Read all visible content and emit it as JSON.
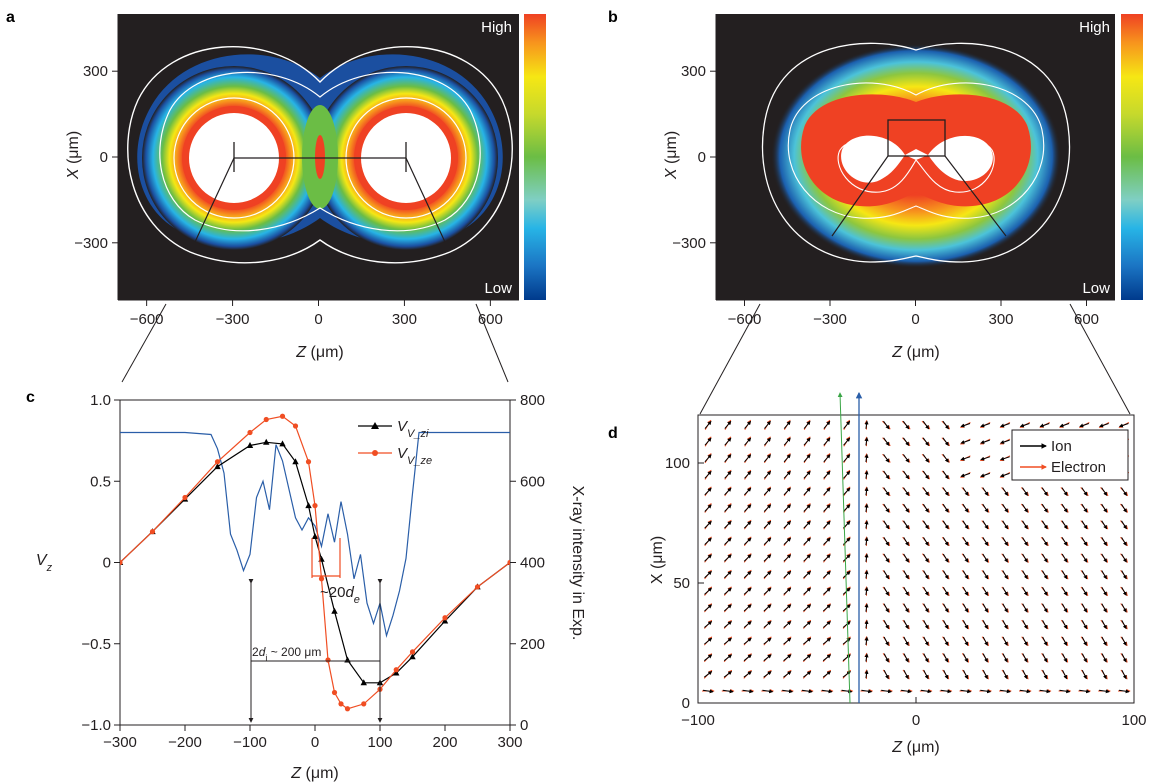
{
  "panels": {
    "a": {
      "label": "a",
      "xlabel_sym": "Z",
      "xlabel_unit": "(μm)",
      "ylabel_sym": "X",
      "ylabel_unit": "(μm)",
      "colorbar_high": "High",
      "colorbar_low": "Low",
      "xticks": [
        "−600",
        "−300",
        "0",
        "300",
        "600"
      ],
      "yticks": [
        "300",
        "0",
        "−300"
      ]
    },
    "b": {
      "label": "b",
      "xlabel_sym": "Z",
      "xlabel_unit": "(μm)",
      "ylabel_sym": "X",
      "ylabel_unit": "(μm)",
      "colorbar_high": "High",
      "colorbar_low": "Low",
      "xticks": [
        "−600",
        "−300",
        "0",
        "300",
        "600"
      ],
      "yticks": [
        "300",
        "0",
        "−300"
      ]
    },
    "c": {
      "label": "c",
      "xlabel_sym": "Z",
      "xlabel_unit": "(μm)",
      "ylabel_left": "V",
      "ylabel_left_sub": "z",
      "ylabel_right": "X-ray intensity in Exp.",
      "yticks_left": [
        "1.0",
        "0.5",
        "0",
        "−0.5",
        "−1.0"
      ],
      "yticks_right": [
        "800",
        "600",
        "400",
        "200",
        "0"
      ],
      "xticks": [
        "−300",
        "−200",
        "−100",
        "0",
        "100",
        "200",
        "300"
      ],
      "ann_de": "~20",
      "ann_de_sym": "d",
      "ann_de_sub": "e",
      "ann_di": "2",
      "ann_di_sym": "d",
      "ann_di_sub": "i",
      "ann_di_val": " ~ 200 μm"
    },
    "d": {
      "label": "d",
      "xlabel_sym": "Z",
      "xlabel_unit": "(μm)",
      "ylabel": "X (μm)",
      "xticks": [
        "−100",
        "0",
        "100"
      ],
      "yticks": [
        "100",
        "50",
        "0"
      ]
    }
  },
  "colors": {
    "background_dark": "#231f20",
    "vzi": "#000000",
    "vze": "#f04e23",
    "xray": "#2a5ea8",
    "ion_arrow": "#000000",
    "electron_arrow": "#f04e23"
  },
  "chart_data": [
    {
      "panel": "a",
      "type": "heatmap",
      "title": "",
      "xlabel": "Z (μm)",
      "ylabel": "X (μm)",
      "xlim": [
        -700,
        700
      ],
      "ylim": [
        -500,
        500
      ],
      "colorbar": [
        "High",
        "Low"
      ],
      "circle_centers_z": [
        -300,
        300
      ],
      "circle_radius": 150
    },
    {
      "panel": "b",
      "type": "heatmap",
      "title": "",
      "xlabel": "Z (μm)",
      "ylabel": "X (μm)",
      "xlim": [
        -700,
        700
      ],
      "ylim": [
        -500,
        500
      ],
      "colorbar": [
        "High",
        "Low"
      ]
    },
    {
      "panel": "c",
      "type": "line",
      "title": "",
      "xlabel": "Z (μm)",
      "ylabel": "V_z",
      "ylabel_right": "X-ray intensity in Exp.",
      "xlim": [
        -300,
        300
      ],
      "ylim": [
        -1.0,
        1.0
      ],
      "ylim_right": [
        0,
        800
      ],
      "series": [
        {
          "name": "V_zi",
          "marker": "triangle",
          "x": [
            -300,
            -250,
            -200,
            -150,
            -100,
            -75,
            -50,
            -30,
            -10,
            0,
            10,
            30,
            50,
            75,
            100,
            125,
            150,
            200,
            250,
            300
          ],
          "y": [
            0.0,
            0.19,
            0.39,
            0.59,
            0.72,
            0.74,
            0.73,
            0.62,
            0.35,
            0.16,
            0.02,
            -0.3,
            -0.6,
            -0.74,
            -0.74,
            -0.68,
            -0.58,
            -0.36,
            -0.15,
            0.0
          ]
        },
        {
          "name": "V_ze",
          "marker": "circle",
          "x": [
            -300,
            -250,
            -200,
            -150,
            -100,
            -75,
            -50,
            -30,
            -10,
            0,
            10,
            20,
            30,
            40,
            50,
            75,
            100,
            125,
            150,
            200,
            250,
            300
          ],
          "y": [
            0.0,
            0.19,
            0.4,
            0.62,
            0.8,
            0.88,
            0.9,
            0.84,
            0.62,
            0.35,
            -0.1,
            -0.6,
            -0.8,
            -0.87,
            -0.9,
            -0.87,
            -0.78,
            -0.66,
            -0.55,
            -0.34,
            -0.15,
            0.0
          ]
        },
        {
          "name": "X-ray intensity",
          "axis": "right",
          "x": [
            -300,
            -200,
            -160,
            -150,
            -140,
            -130,
            -120,
            -110,
            -100,
            -90,
            -80,
            -70,
            -60,
            -50,
            -40,
            -30,
            -20,
            -10,
            0,
            10,
            20,
            30,
            40,
            50,
            60,
            70,
            80,
            90,
            100,
            110,
            120,
            130,
            140,
            150,
            160,
            200,
            300
          ],
          "y": [
            720,
            720,
            715,
            680,
            620,
            470,
            430,
            380,
            420,
            560,
            600,
            530,
            690,
            650,
            580,
            510,
            480,
            510,
            490,
            440,
            520,
            450,
            550,
            470,
            360,
            420,
            300,
            250,
            300,
            220,
            270,
            330,
            410,
            570,
            720,
            720,
            720
          ]
        }
      ],
      "annotations": [
        "~20d_e",
        "2d_i ~ 200 μm"
      ]
    },
    {
      "panel": "d",
      "type": "scatter",
      "title": "",
      "xlabel": "Z (μm)",
      "ylabel": "X (μm)",
      "xlim": [
        -100,
        100
      ],
      "ylim": [
        0,
        120
      ],
      "legend": [
        "Ion",
        "Electron"
      ],
      "legend_position": "top-right",
      "description": "quiver field of ion (black) and electron (red) velocity arrows"
    }
  ]
}
